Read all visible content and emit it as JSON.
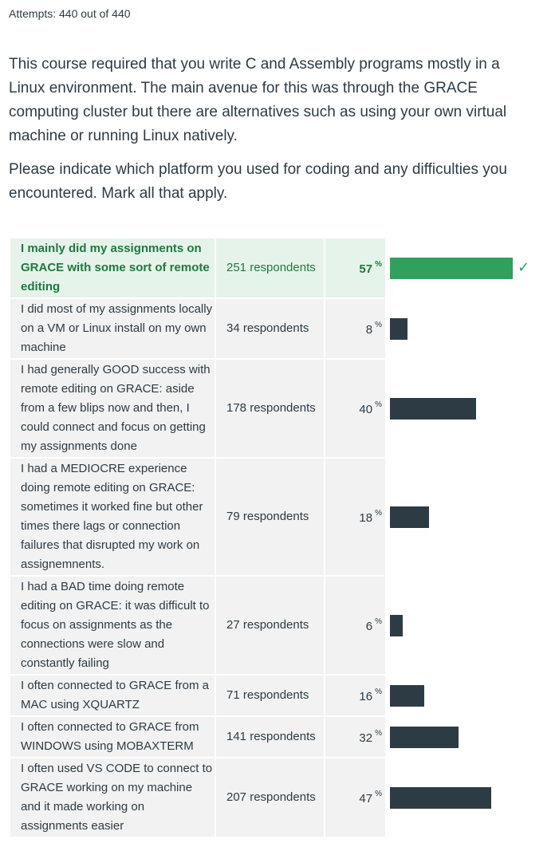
{
  "attempts": "Attempts: 440 out of 440",
  "question": {
    "paragraph1": "This course required that you write C and Assembly programs mostly in a Linux environment.  The main avenue for this was through the GRACE computing cluster but there are alternatives such as using your own virtual machine or running Linux natively.",
    "paragraph2": "Please indicate which platform you used for coding and any difficulties you encountered. Mark all that apply."
  },
  "colors": {
    "correct_bar": "#2fa05e",
    "bar": "#2d3b45",
    "correct_bg": "#e6f3ea",
    "cell_bg": "#f2f2f2"
  },
  "answers": [
    {
      "label": "I mainly did my assignments on GRACE with some sort of remote editing",
      "count": "251 respondents",
      "percent": "57",
      "percent_sign": "%",
      "value": 57,
      "correct": true,
      "check_icon": "check-icon"
    },
    {
      "label": "I did most of my assignments locally on a VM or Linux install on my own machine",
      "count": "34 respondents",
      "percent": "8",
      "percent_sign": "%",
      "value": 8,
      "correct": false
    },
    {
      "label": "I had generally GOOD success with remote editing on GRACE: aside from a few blips now and then, I could connect and focus on getting my assignments done",
      "count": "178 respondents",
      "percent": "40",
      "percent_sign": "%",
      "value": 40,
      "correct": false
    },
    {
      "label": "I had a MEDIOCRE experience doing remote editing on GRACE: sometimes it worked fine but other times there lags or connection failures that disrupted my work on assignemnents.",
      "count": "79 respondents",
      "percent": "18",
      "percent_sign": "%",
      "value": 18,
      "correct": false
    },
    {
      "label": "I had a BAD time doing remote editing on GRACE: it was difficult to focus on assignments as the connections were slow and constantly failing",
      "count": "27 respondents",
      "percent": "6",
      "percent_sign": "%",
      "value": 6,
      "correct": false
    },
    {
      "label": "I often connected to GRACE from a MAC using XQUARTZ",
      "count": "71 respondents",
      "percent": "16",
      "percent_sign": "%",
      "value": 16,
      "correct": false
    },
    {
      "label": "I often connected to GRACE from WINDOWS using MOBAXTERM",
      "count": "141 respondents",
      "percent": "32",
      "percent_sign": "%",
      "value": 32,
      "correct": false
    },
    {
      "label": "I often used VS CODE to connect to GRACE working on my machine and it made working on assignments easier",
      "count": "207 respondents",
      "percent": "47",
      "percent_sign": "%",
      "value": 47,
      "correct": false
    }
  ]
}
